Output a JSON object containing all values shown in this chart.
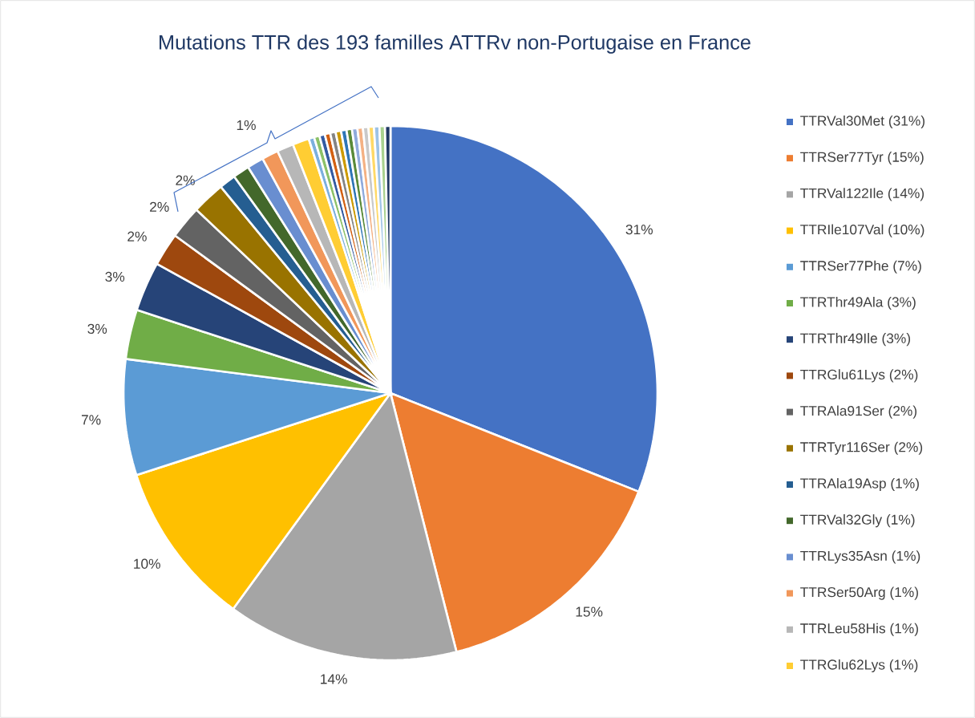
{
  "chart_data": {
    "type": "pie",
    "title": "Mutations TTR des 193 familles ATTRv non-Portugaise en France",
    "categories": [
      "TTRVal30Met (31%)",
      "TTRSer77Tyr (15%)",
      "TTRVal122Ile (14%)",
      "TTRIle107Val (10%)",
      "TTRSer77Phe (7%)",
      "TTRThr49Ala (3%)",
      "TTRThr49Ile (3%)",
      "TTRGlu61Lys (2%)",
      "TTRAla91Ser (2%)",
      "TTRTyr116Ser (2%)",
      "TTRAla19Asp (1%)",
      "TTRVal32Gly (1%)",
      "TTRLys35Asn (1%)",
      "TTRSer50Arg (1%)",
      "TTRLeu58His (1%)",
      "TTRGlu62Lys (1%)",
      null,
      null,
      null,
      null,
      null,
      null,
      null,
      null,
      null,
      null,
      null,
      null,
      null,
      null,
      null
    ],
    "values": [
      31,
      15,
      14,
      10,
      7,
      3,
      3,
      2,
      2,
      2,
      1,
      1,
      1,
      1,
      1,
      1,
      0.33,
      0.33,
      0.33,
      0.33,
      0.33,
      0.33,
      0.33,
      0.33,
      0.33,
      0.33,
      0.33,
      0.33,
      0.33,
      0.33,
      0.33
    ],
    "colors": [
      "#4472c4",
      "#ed7d31",
      "#a5a5a5",
      "#ffc000",
      "#5b9bd5",
      "#70ad47",
      "#264478",
      "#9e480e",
      "#636363",
      "#997300",
      "#255e91",
      "#43682b",
      "#698ed0",
      "#f1975a",
      "#b7b7b7",
      "#ffcd33",
      "#7cafdd",
      "#8cc168",
      "#335aa1",
      "#d26012",
      "#848484",
      "#cc9a00",
      "#2e75b6",
      "#5a8a39",
      "#8faadc",
      "#f4b183",
      "#c9c9c9",
      "#ffd966",
      "#9dc3e6",
      "#a9d18e",
      "#203864"
    ],
    "value_labels": [
      "31%",
      "15%",
      "14%",
      "10%",
      "7%",
      "3%",
      "3%",
      "2%",
      "2%",
      "2%",
      null,
      null,
      null,
      null,
      null,
      null,
      null,
      null,
      null,
      null,
      null,
      null,
      null,
      null,
      null,
      null,
      null,
      null,
      null,
      null,
      null
    ],
    "annotations": [
      "1%"
    ],
    "legend": "right"
  }
}
